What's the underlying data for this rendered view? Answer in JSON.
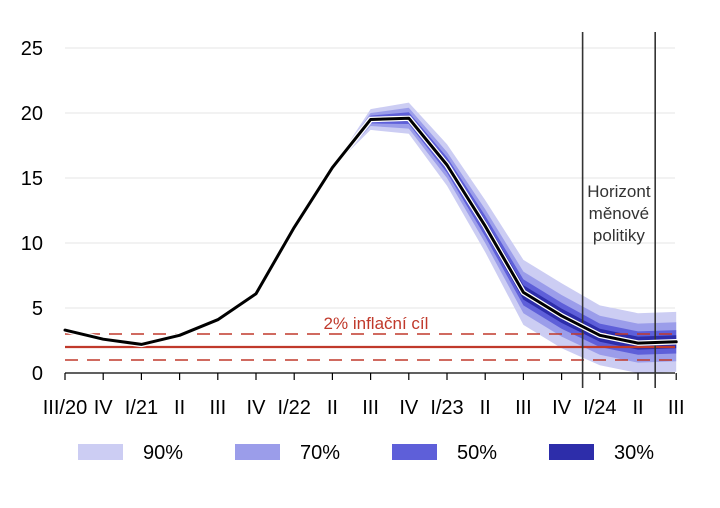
{
  "chart_data": {
    "type": "line",
    "title": "",
    "xlabel": "",
    "ylabel": "",
    "ylim": [
      0,
      25
    ],
    "y_ticks": [
      0,
      5,
      10,
      15,
      20,
      25
    ],
    "grid": true,
    "legend_position": "bottom",
    "x_tick_labels": [
      "III/20",
      "IV",
      "I/21",
      "II",
      "III",
      "IV",
      "I/22",
      "II",
      "III",
      "IV",
      "I/23",
      "II",
      "III",
      "IV",
      "I/24",
      "II",
      "III"
    ],
    "series": [
      {
        "type": "line",
        "color": "#000000",
        "x": [
          "III/20",
          "IV",
          "I/21",
          "II",
          "III",
          "IV",
          "I/22",
          "II",
          "III",
          "IV",
          "I/23",
          "II",
          "III",
          "IV",
          "I/24",
          "II",
          "III"
        ],
        "values": [
          3.3,
          2.6,
          2.2,
          2.9,
          4.1,
          6.1,
          11.2,
          15.8,
          19.5,
          19.6,
          16.0,
          11.3,
          6.2,
          4.4,
          2.9,
          2.3,
          2.4
        ]
      }
    ],
    "fan": {
      "x": [
        "II",
        "III",
        "IV",
        "I/23",
        "II",
        "III",
        "IV",
        "I/24",
        "II",
        "III"
      ],
      "center": [
        15.8,
        19.5,
        19.6,
        16.0,
        11.3,
        6.2,
        4.4,
        2.9,
        2.3,
        2.4
      ],
      "bands": [
        {
          "label": "90%",
          "color": "#cccdf3",
          "half_width": [
            0.0,
            0.8,
            1.2,
            1.6,
            2.0,
            2.5,
            2.5,
            2.3,
            2.3,
            2.3
          ]
        },
        {
          "label": "70%",
          "color": "#9b9dea",
          "half_width": [
            0.0,
            0.5,
            0.8,
            1.0,
            1.3,
            1.6,
            1.6,
            1.5,
            1.5,
            1.5
          ]
        },
        {
          "label": "50%",
          "color": "#5e5fd9",
          "half_width": [
            0.0,
            0.3,
            0.45,
            0.6,
            0.8,
            1.0,
            1.0,
            0.9,
            0.9,
            0.9
          ]
        },
        {
          "label": "30%",
          "color": "#2d2daa",
          "half_width": [
            0.0,
            0.15,
            0.25,
            0.35,
            0.45,
            0.55,
            0.55,
            0.5,
            0.5,
            0.5
          ]
        }
      ]
    },
    "inflation_target": {
      "label": "2% inflační cíl",
      "value": 2,
      "tolerance_band": [
        1,
        3
      ],
      "color": "#c0392b"
    },
    "policy_horizon": {
      "label_lines": [
        "Horizont",
        "měnové",
        "politiky"
      ],
      "x_range": [
        "IV",
        "III"
      ]
    },
    "legend": [
      {
        "label": "90%",
        "color": "#cccdf3"
      },
      {
        "label": "70%",
        "color": "#9b9dea"
      },
      {
        "label": "50%",
        "color": "#5e5fd9"
      },
      {
        "label": "30%",
        "color": "#2d2daa"
      }
    ]
  }
}
